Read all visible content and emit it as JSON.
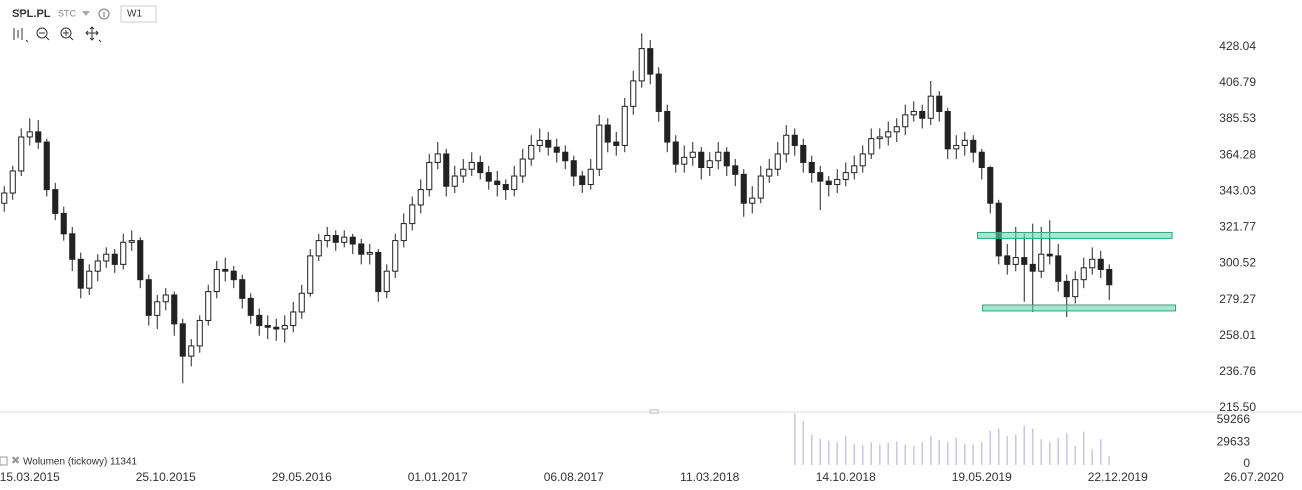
{
  "chart_data": {
    "type": "candlestick",
    "title": "SPL.PL",
    "source_label": "STC",
    "interval": "W1",
    "volume_label": "Wolumen (tickowy) 11341",
    "xlim": [
      -0.5,
      151.5
    ],
    "xticks": [
      {
        "value": 3,
        "label": "15.03.2015"
      },
      {
        "value": 19,
        "label": "25.10.2015"
      },
      {
        "value": 35,
        "label": "29.05.2016"
      },
      {
        "value": 51,
        "label": "01.01.2017"
      },
      {
        "value": 67,
        "label": "06.08.2017"
      },
      {
        "value": 83,
        "label": "11.03.2018"
      },
      {
        "value": 99,
        "label": "14.10.2018"
      },
      {
        "value": 115,
        "label": "19.05.2019"
      },
      {
        "value": 131,
        "label": "22.12.2019"
      },
      {
        "value": 147,
        "label": "26.07.2020"
      }
    ],
    "ylim": [
      214.3,
      455.6
    ],
    "yticks": [
      {
        "value": 215.5,
        "label": "215.50"
      },
      236.76,
      258.01,
      279.27,
      300.52,
      321.77,
      343.03,
      364.28,
      385.53,
      406.79,
      428.04
    ],
    "volume_ylim": [
      0,
      69800
    ],
    "volume_yticks": [
      0,
      29633,
      59266
    ],
    "up_color": "#ffffff",
    "down_color": "#222222",
    "volume_color": "#c9c5e3",
    "zone_color": "#6fd3b0",
    "zones": [
      {
        "y": [
          315.3,
          318.8
        ],
        "x": [
          114.5,
          137.4
        ]
      },
      {
        "y": [
          272.6,
          276.1
        ],
        "x": [
          115.1,
          137.8
        ]
      }
    ],
    "ohlc": [
      [
        336,
        346,
        331,
        342
      ],
      [
        342,
        358,
        338,
        355
      ],
      [
        355,
        380,
        352,
        375
      ],
      [
        375,
        386,
        370,
        378
      ],
      [
        378,
        385,
        368,
        372
      ],
      [
        372,
        374,
        340,
        344
      ],
      [
        344,
        348,
        326,
        330
      ],
      [
        330,
        334,
        314,
        318
      ],
      [
        318,
        322,
        296,
        303
      ],
      [
        303,
        307,
        280,
        286
      ],
      [
        286,
        300,
        282,
        296
      ],
      [
        296,
        306,
        290,
        302
      ],
      [
        302,
        310,
        298,
        306
      ],
      [
        306,
        309,
        295,
        300
      ],
      [
        300,
        318,
        297,
        313
      ],
      [
        313,
        320,
        308,
        314
      ],
      [
        314,
        316,
        286,
        291
      ],
      [
        291,
        294,
        264,
        270
      ],
      [
        270,
        282,
        262,
        278
      ],
      [
        278,
        286,
        273,
        282
      ],
      [
        282,
        284,
        258,
        265
      ],
      [
        265,
        268,
        230,
        246
      ],
      [
        246,
        256,
        240,
        252
      ],
      [
        252,
        270,
        248,
        267
      ],
      [
        267,
        288,
        264,
        284
      ],
      [
        284,
        302,
        280,
        297
      ],
      [
        297,
        304,
        290,
        296
      ],
      [
        296,
        299,
        286,
        291
      ],
      [
        291,
        294,
        274,
        280
      ],
      [
        280,
        283,
        265,
        270
      ],
      [
        270,
        274,
        258,
        264
      ],
      [
        264,
        270,
        256,
        263
      ],
      [
        263,
        268,
        255,
        262
      ],
      [
        262,
        270,
        254,
        264
      ],
      [
        264,
        278,
        260,
        272
      ],
      [
        272,
        288,
        268,
        283
      ],
      [
        283,
        309,
        281,
        305
      ],
      [
        305,
        318,
        302,
        314
      ],
      [
        314,
        322,
        310,
        317
      ],
      [
        317,
        320,
        308,
        313
      ],
      [
        313,
        320,
        310,
        316
      ],
      [
        316,
        318,
        306,
        312
      ],
      [
        312,
        315,
        300,
        306
      ],
      [
        306,
        312,
        300,
        307
      ],
      [
        307,
        309,
        278,
        284
      ],
      [
        284,
        300,
        280,
        296
      ],
      [
        296,
        318,
        292,
        314
      ],
      [
        314,
        330,
        310,
        324
      ],
      [
        324,
        340,
        320,
        335
      ],
      [
        335,
        350,
        330,
        344
      ],
      [
        344,
        365,
        340,
        360
      ],
      [
        360,
        372,
        356,
        365
      ],
      [
        365,
        368,
        340,
        346
      ],
      [
        346,
        358,
        342,
        352
      ],
      [
        352,
        362,
        348,
        356
      ],
      [
        356,
        366,
        352,
        360
      ],
      [
        360,
        364,
        350,
        354
      ],
      [
        354,
        358,
        344,
        349
      ],
      [
        349,
        355,
        340,
        347
      ],
      [
        347,
        350,
        338,
        344
      ],
      [
        344,
        358,
        340,
        352
      ],
      [
        352,
        368,
        348,
        362
      ],
      [
        362,
        376,
        358,
        370
      ],
      [
        370,
        380,
        366,
        373
      ],
      [
        373,
        378,
        364,
        369
      ],
      [
        369,
        374,
        360,
        366
      ],
      [
        366,
        370,
        356,
        361
      ],
      [
        361,
        364,
        346,
        352
      ],
      [
        352,
        355,
        342,
        347
      ],
      [
        347,
        362,
        344,
        356
      ],
      [
        356,
        388,
        352,
        382
      ],
      [
        382,
        386,
        366,
        372
      ],
      [
        372,
        378,
        364,
        370
      ],
      [
        370,
        398,
        366,
        393
      ],
      [
        393,
        414,
        388,
        408
      ],
      [
        408,
        436,
        404,
        427
      ],
      [
        427,
        432,
        406,
        412
      ],
      [
        412,
        416,
        384,
        390
      ],
      [
        390,
        394,
        366,
        372
      ],
      [
        372,
        376,
        354,
        359
      ],
      [
        359,
        370,
        354,
        363
      ],
      [
        363,
        372,
        358,
        366
      ],
      [
        366,
        369,
        350,
        357
      ],
      [
        357,
        366,
        352,
        361
      ],
      [
        361,
        372,
        356,
        366
      ],
      [
        366,
        369,
        352,
        358
      ],
      [
        358,
        362,
        346,
        353
      ],
      [
        353,
        356,
        328,
        336
      ],
      [
        336,
        346,
        330,
        339
      ],
      [
        339,
        358,
        336,
        352
      ],
      [
        352,
        362,
        348,
        356
      ],
      [
        356,
        372,
        352,
        365
      ],
      [
        365,
        382,
        360,
        376
      ],
      [
        376,
        380,
        364,
        370
      ],
      [
        370,
        374,
        354,
        360
      ],
      [
        360,
        364,
        348,
        354
      ],
      [
        354,
        358,
        332,
        349
      ],
      [
        349,
        352,
        340,
        347
      ],
      [
        347,
        356,
        342,
        350
      ],
      [
        350,
        360,
        346,
        354
      ],
      [
        354,
        364,
        350,
        358
      ],
      [
        358,
        370,
        354,
        365
      ],
      [
        365,
        380,
        362,
        374
      ],
      [
        374,
        380,
        368,
        375
      ],
      [
        375,
        384,
        370,
        378
      ],
      [
        378,
        386,
        372,
        381
      ],
      [
        381,
        394,
        376,
        388
      ],
      [
        388,
        396,
        384,
        390
      ],
      [
        390,
        394,
        380,
        386
      ],
      [
        386,
        408,
        382,
        399
      ],
      [
        399,
        402,
        384,
        390
      ],
      [
        390,
        392,
        362,
        368
      ],
      [
        368,
        376,
        362,
        370
      ],
      [
        370,
        378,
        364,
        373
      ],
      [
        373,
        376,
        360,
        366
      ],
      [
        366,
        368,
        350,
        357
      ],
      [
        357,
        358,
        330,
        336
      ],
      [
        336,
        338,
        300,
        305
      ],
      [
        305,
        312,
        294,
        300
      ],
      [
        300,
        322,
        296,
        304
      ],
      [
        304,
        318,
        278,
        300
      ],
      [
        300,
        324,
        272,
        296
      ],
      [
        296,
        322,
        292,
        306
      ],
      [
        306,
        326,
        300,
        305
      ],
      [
        305,
        312,
        284,
        290
      ],
      [
        290,
        294,
        269,
        281
      ],
      [
        281,
        296,
        277,
        291
      ],
      [
        291,
        304,
        286,
        298
      ],
      [
        298,
        310,
        294,
        303
      ],
      [
        303,
        308,
        292,
        297
      ],
      [
        297,
        300,
        279,
        288
      ]
    ],
    "volume": [
      null,
      null,
      null,
      null,
      null,
      null,
      null,
      null,
      null,
      null,
      null,
      null,
      null,
      null,
      null,
      null,
      null,
      null,
      null,
      null,
      null,
      null,
      null,
      null,
      null,
      null,
      null,
      null,
      null,
      null,
      null,
      null,
      null,
      null,
      null,
      null,
      null,
      null,
      null,
      null,
      null,
      null,
      null,
      null,
      null,
      null,
      null,
      null,
      null,
      null,
      null,
      null,
      null,
      null,
      null,
      null,
      null,
      null,
      null,
      null,
      null,
      null,
      null,
      null,
      null,
      null,
      null,
      null,
      null,
      null,
      null,
      null,
      null,
      null,
      null,
      null,
      null,
      null,
      null,
      null,
      null,
      null,
      null,
      null,
      null,
      null,
      null,
      null,
      null,
      null,
      null,
      null,
      null,
      68000,
      58000,
      40000,
      35000,
      32000,
      30000,
      38000,
      28000,
      26000,
      30000,
      27000,
      29000,
      31000,
      27000,
      25000,
      30000,
      38000,
      33000,
      30000,
      36000,
      28000,
      27000,
      30000,
      45000,
      48000,
      38000,
      40000,
      52000,
      48000,
      34000,
      30000,
      36000,
      42000,
      25000,
      44000,
      20000,
      34000,
      12000
    ]
  }
}
